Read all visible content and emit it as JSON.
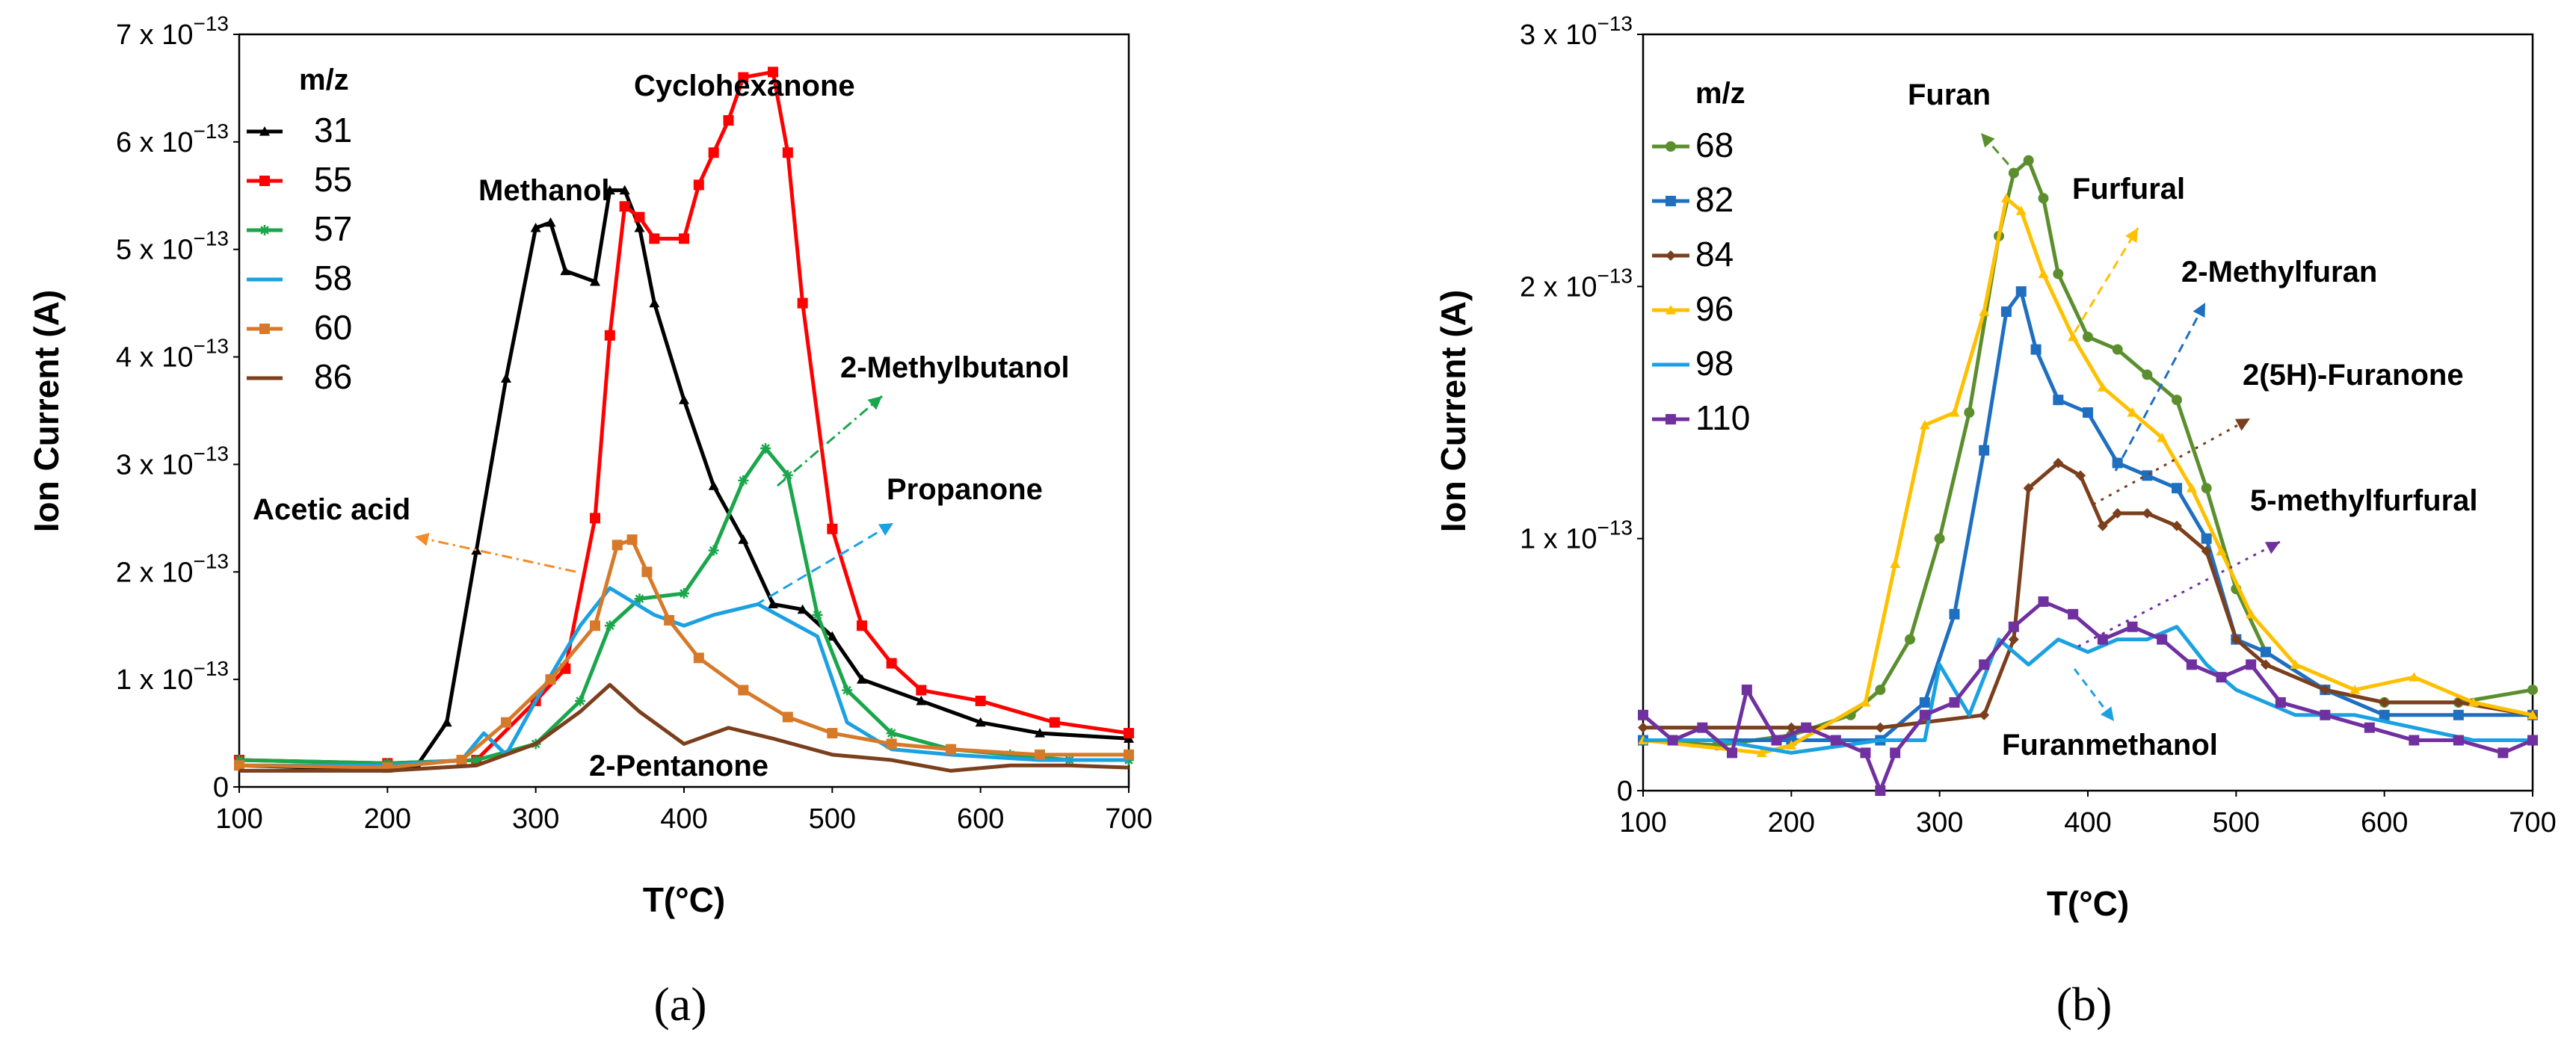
{
  "panels": [
    {
      "id": "a",
      "panel_label": "(a)",
      "legend_title": "m/z",
      "series": [
        {
          "name": "31",
          "color": "#000000",
          "marker": "triangle"
        },
        {
          "name": "55",
          "color": "#ff0000",
          "marker": "square"
        },
        {
          "name": "57",
          "color": "#1aa64b",
          "marker": "star"
        },
        {
          "name": "58",
          "color": "#1ba1e2",
          "marker": "none"
        },
        {
          "name": "60",
          "color": "#d67a2a",
          "marker": "square"
        },
        {
          "name": "86",
          "color": "#7b3f1d",
          "marker": "none"
        }
      ],
      "annotations": [
        {
          "text": "Cyclohexanone",
          "color": "#000000"
        },
        {
          "text": "Methanol",
          "color": "#000000"
        },
        {
          "text": "2-Methylbutanol",
          "color": "#1aa64b"
        },
        {
          "text": "Propanone",
          "color": "#1ba1e2"
        },
        {
          "text": "Acetic acid",
          "color": "#f28c28"
        },
        {
          "text": "2-Pentanone",
          "color": "#000000"
        }
      ]
    },
    {
      "id": "b",
      "panel_label": "(b)",
      "legend_title": "m/z",
      "series": [
        {
          "name": "68",
          "color": "#5b8f2e",
          "marker": "circle"
        },
        {
          "name": "82",
          "color": "#1f6fc0",
          "marker": "square"
        },
        {
          "name": "84",
          "color": "#7b3f1d",
          "marker": "diamond"
        },
        {
          "name": "96",
          "color": "#ffc000",
          "marker": "triangle"
        },
        {
          "name": "98",
          "color": "#1ba1e2",
          "marker": "none"
        },
        {
          "name": "110",
          "color": "#7030a0",
          "marker": "square"
        }
      ],
      "annotations": [
        {
          "text": "Furan",
          "color": "#5b8f2e"
        },
        {
          "text": "Furfural",
          "color": "#ffc000"
        },
        {
          "text": "2-Methylfuran",
          "color": "#1f6fc0"
        },
        {
          "text": "2(5H)-Furanone",
          "color": "#7b3f1d"
        },
        {
          "text": "5-methylfurfural",
          "color": "#7030a0"
        },
        {
          "text": "Furanmethanol",
          "color": "#1ba1e2"
        }
      ]
    }
  ],
  "chart_data": [
    {
      "type": "line",
      "xlabel": "T(°C)",
      "ylabel": "Ion Current (A)",
      "xlim": [
        100,
        700
      ],
      "ylim": [
        0,
        7e-13
      ],
      "x_ticks": [
        "100",
        "200",
        "300",
        "400",
        "500",
        "600",
        "700"
      ],
      "y_ticks": [
        {
          "mantissa": "",
          "exp": "",
          "plain": "0"
        },
        {
          "mantissa": "1 x 10",
          "exp": "−13",
          "plain": ""
        },
        {
          "mantissa": "2 x 10",
          "exp": "−13",
          "plain": ""
        },
        {
          "mantissa": "3 x 10",
          "exp": "−13",
          "plain": ""
        },
        {
          "mantissa": "4 x 10",
          "exp": "−13",
          "plain": ""
        },
        {
          "mantissa": "5 x 10",
          "exp": "−13",
          "plain": ""
        },
        {
          "mantissa": "6 x 10",
          "exp": "−13",
          "plain": ""
        },
        {
          "mantissa": "7 x 10",
          "exp": "−13",
          "plain": ""
        }
      ],
      "series": [
        {
          "name": "31",
          "x": [
            100,
            150,
            200,
            220,
            240,
            260,
            280,
            300,
            310,
            320,
            340,
            350,
            360,
            370,
            380,
            400,
            420,
            440,
            460,
            480,
            500,
            520,
            560,
            600,
            640,
            700
          ],
          "y": [
            2e-14,
            1.8e-14,
            1.8e-14,
            2e-14,
            6e-14,
            2.2e-13,
            3.8e-13,
            5.2e-13,
            5.25e-13,
            4.8e-13,
            4.7e-13,
            5.55e-13,
            5.55e-13,
            5.2e-13,
            4.5e-13,
            3.6e-13,
            2.8e-13,
            2.3e-13,
            1.7e-13,
            1.65e-13,
            1.4e-13,
            1e-13,
            8e-14,
            6e-14,
            5e-14,
            4.5e-14
          ]
        },
        {
          "name": "55",
          "x": [
            100,
            200,
            260,
            300,
            320,
            340,
            350,
            360,
            370,
            380,
            400,
            410,
            420,
            430,
            440,
            460,
            470,
            480,
            500,
            520,
            540,
            560,
            600,
            650,
            700
          ],
          "y": [
            2.5e-14,
            2.2e-14,
            2.5e-14,
            8e-14,
            1.1e-13,
            2.5e-13,
            4.2e-13,
            5.4e-13,
            5.3e-13,
            5.1e-13,
            5.1e-13,
            5.6e-13,
            5.9e-13,
            6.2e-13,
            6.6e-13,
            6.65e-13,
            5.9e-13,
            4.5e-13,
            2.4e-13,
            1.5e-13,
            1.15e-13,
            9e-14,
            8e-14,
            6e-14,
            5e-14
          ]
        },
        {
          "name": "57",
          "x": [
            100,
            200,
            260,
            300,
            330,
            350,
            370,
            400,
            420,
            440,
            455,
            470,
            490,
            510,
            540,
            580,
            620,
            660,
            700
          ],
          "y": [
            2.5e-14,
            2.2e-14,
            2.5e-14,
            4e-14,
            8e-14,
            1.5e-13,
            1.75e-13,
            1.8e-13,
            2.2e-13,
            2.85e-13,
            3.15e-13,
            2.9e-13,
            1.6e-13,
            9e-14,
            5e-14,
            3.5e-14,
            3e-14,
            2.5e-14,
            2.5e-14
          ]
        },
        {
          "name": "58",
          "x": [
            100,
            200,
            250,
            265,
            280,
            300,
            330,
            350,
            380,
            400,
            420,
            450,
            470,
            490,
            510,
            540,
            580,
            640,
            700
          ],
          "y": [
            2e-14,
            2e-14,
            2.5e-14,
            5e-14,
            3e-14,
            8e-14,
            1.5e-13,
            1.85e-13,
            1.6e-13,
            1.5e-13,
            1.6e-13,
            1.7e-13,
            1.55e-13,
            1.4e-13,
            6e-14,
            3.5e-14,
            3e-14,
            2.5e-14,
            2.5e-14
          ]
        },
        {
          "name": "60",
          "x": [
            100,
            200,
            250,
            280,
            310,
            340,
            355,
            365,
            375,
            390,
            410,
            440,
            470,
            500,
            540,
            580,
            640,
            700
          ],
          "y": [
            2e-14,
            1.8e-14,
            2.5e-14,
            6e-14,
            1e-13,
            1.5e-13,
            2.25e-13,
            2.3e-13,
            2e-13,
            1.55e-13,
            1.2e-13,
            9e-14,
            6.5e-14,
            5e-14,
            4e-14,
            3.5e-14,
            3e-14,
            3e-14
          ]
        },
        {
          "name": "86",
          "x": [
            100,
            200,
            260,
            300,
            330,
            350,
            370,
            400,
            430,
            460,
            500,
            540,
            580,
            620,
            660,
            700
          ],
          "y": [
            1.5e-14,
            1.5e-14,
            2e-14,
            4e-14,
            7e-14,
            9.5e-14,
            7e-14,
            4e-14,
            5.5e-14,
            4.5e-14,
            3e-14,
            2.5e-14,
            1.5e-14,
            2e-14,
            2e-14,
            1.8e-14
          ]
        }
      ]
    },
    {
      "type": "line",
      "xlabel": "T(°C)",
      "ylabel": "Ion Current (A)",
      "xlim": [
        100,
        700
      ],
      "ylim": [
        0,
        3e-13
      ],
      "x_ticks": [
        "100",
        "200",
        "300",
        "400",
        "500",
        "600",
        "700"
      ],
      "y_ticks": [
        {
          "mantissa": "",
          "exp": "",
          "plain": "0"
        },
        {
          "mantissa": "1 x 10",
          "exp": "−13",
          "plain": ""
        },
        {
          "mantissa": "2 x 10",
          "exp": "−13",
          "plain": ""
        },
        {
          "mantissa": "3 x 10",
          "exp": "−13",
          "plain": ""
        }
      ],
      "series": [
        {
          "name": "68",
          "x": [
            100,
            150,
            200,
            240,
            260,
            280,
            300,
            320,
            340,
            350,
            360,
            370,
            380,
            400,
            420,
            440,
            460,
            480,
            500,
            520,
            560,
            600,
            650,
            700
          ],
          "y": [
            2e-14,
            1.8e-14,
            2.2e-14,
            3e-14,
            4e-14,
            6e-14,
            1e-13,
            1.5e-13,
            2.2e-13,
            2.45e-13,
            2.5e-13,
            2.35e-13,
            2.05e-13,
            1.8e-13,
            1.75e-13,
            1.65e-13,
            1.55e-13,
            1.2e-13,
            8e-14,
            5.5e-14,
            4e-14,
            3.5e-14,
            3.5e-14,
            4e-14
          ]
        },
        {
          "name": "82",
          "x": [
            100,
            200,
            260,
            290,
            310,
            330,
            345,
            355,
            365,
            380,
            400,
            420,
            440,
            460,
            480,
            500,
            520,
            560,
            600,
            650,
            700
          ],
          "y": [
            2e-14,
            2e-14,
            2e-14,
            3.5e-14,
            7e-14,
            1.35e-13,
            1.9e-13,
            1.98e-13,
            1.75e-13,
            1.55e-13,
            1.5e-13,
            1.3e-13,
            1.25e-13,
            1.2e-13,
            1e-13,
            6e-14,
            5.5e-14,
            4e-14,
            3e-14,
            3e-14,
            3e-14
          ]
        },
        {
          "name": "84",
          "x": [
            100,
            200,
            260,
            330,
            350,
            360,
            380,
            395,
            410,
            420,
            440,
            460,
            480,
            500,
            520,
            560,
            600,
            650,
            700
          ],
          "y": [
            2.5e-14,
            2.5e-14,
            2.5e-14,
            3e-14,
            6e-14,
            1.2e-13,
            1.3e-13,
            1.25e-13,
            1.05e-13,
            1.1e-13,
            1.1e-13,
            1.05e-13,
            9.5e-14,
            6e-14,
            5e-14,
            4e-14,
            3.5e-14,
            3.5e-14,
            3e-14
          ]
        },
        {
          "name": "96",
          "x": [
            100,
            180,
            200,
            250,
            270,
            290,
            310,
            330,
            345,
            355,
            370,
            390,
            410,
            430,
            450,
            470,
            490,
            510,
            540,
            580,
            620,
            660,
            700
          ],
          "y": [
            2e-14,
            1.5e-14,
            1.8e-14,
            3.5e-14,
            9e-14,
            1.45e-13,
            1.5e-13,
            1.9e-13,
            2.35e-13,
            2.3e-13,
            2.05e-13,
            1.8e-13,
            1.6e-13,
            1.5e-13,
            1.4e-13,
            1.2e-13,
            9.5e-14,
            7e-14,
            5e-14,
            4e-14,
            4.5e-14,
            3.5e-14,
            3e-14
          ]
        },
        {
          "name": "98",
          "x": [
            100,
            150,
            200,
            260,
            290,
            300,
            320,
            340,
            360,
            380,
            400,
            420,
            440,
            460,
            480,
            500,
            540,
            580,
            620,
            660,
            700
          ],
          "y": [
            2e-14,
            2e-14,
            1.5e-14,
            2e-14,
            2e-14,
            5e-14,
            3e-14,
            6e-14,
            5e-14,
            6e-14,
            5.5e-14,
            6e-14,
            6e-14,
            6.5e-14,
            5e-14,
            4e-14,
            3e-14,
            3e-14,
            2.5e-14,
            2e-14,
            2e-14
          ]
        },
        {
          "name": "110",
          "x": [
            100,
            120,
            140,
            160,
            170,
            190,
            210,
            230,
            250,
            260,
            270,
            290,
            310,
            330,
            350,
            370,
            390,
            410,
            430,
            450,
            470,
            490,
            510,
            530,
            560,
            590,
            620,
            650,
            680,
            700
          ],
          "y": [
            3e-14,
            2e-14,
            2.5e-14,
            1.5e-14,
            4e-14,
            2e-14,
            2.5e-14,
            2e-14,
            1.5e-14,
            0.0,
            1.5e-14,
            3e-14,
            3.5e-14,
            5e-14,
            6.5e-14,
            7.5e-14,
            7e-14,
            6e-14,
            6.5e-14,
            6e-14,
            5e-14,
            4.5e-14,
            5e-14,
            3.5e-14,
            3e-14,
            2.5e-14,
            2e-14,
            2e-14,
            1.5e-14,
            2e-14
          ]
        }
      ]
    }
  ]
}
